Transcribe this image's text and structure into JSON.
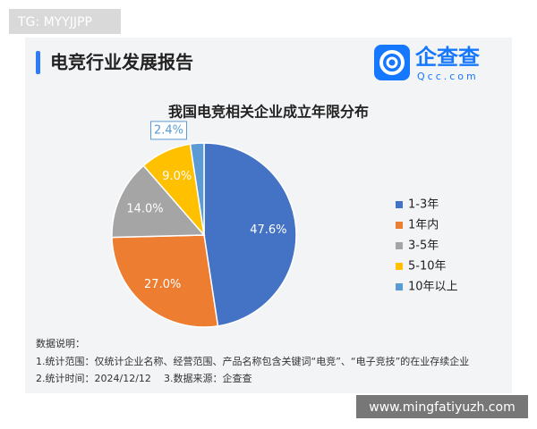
{
  "watermark_top": "TG: MYYJJPP",
  "header": {
    "title": "电竞行业发展报告",
    "logo_name": "企查查",
    "logo_domain": "Qcc.com"
  },
  "chart_data": {
    "type": "pie",
    "title": "我国电竞相关企业成立年限分布",
    "categories": [
      "1-3年",
      "1年内",
      "3-5年",
      "5-10年",
      "10年以上"
    ],
    "values": [
      47.6,
      27.0,
      14.0,
      9.0,
      2.4
    ],
    "value_labels": [
      "47.6%",
      "27.0%",
      "14.0%",
      "9.0%",
      "2.4%"
    ],
    "colors": [
      "#4472c4",
      "#ed7d31",
      "#a5a5a5",
      "#ffc000",
      "#5b9bd5"
    ],
    "legend": "right"
  },
  "notes": {
    "heading": "数据说明：",
    "items": [
      "1.统计范围：仅统计企业名称、经营范围、产品名称包含关键词“电竞”、“电子竞技”的在业存续企业",
      "2.统计时间：2024/12/12",
      "3.数据来源：企查查"
    ]
  },
  "watermark_bottom": "www.mingfatiyuzh.com"
}
